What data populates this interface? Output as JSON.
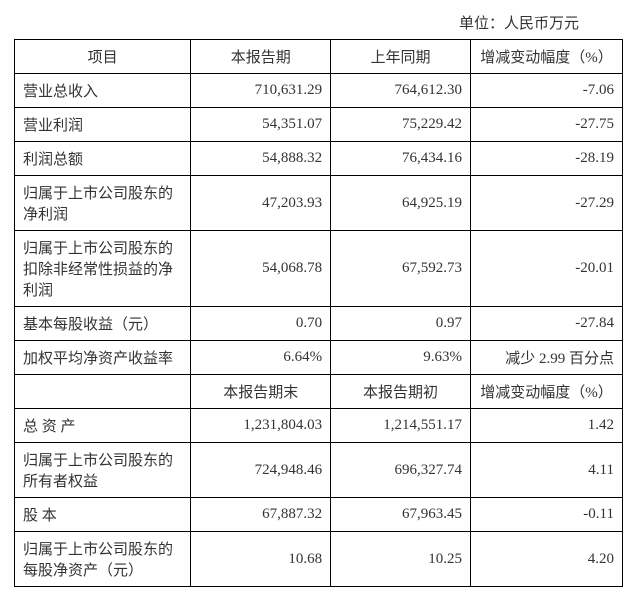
{
  "unit_label": "单位：人民币万元",
  "header1": {
    "col1": "项目",
    "col2": "本报告期",
    "col3": "上年同期",
    "col4": "增减变动幅度（%）"
  },
  "rows1": [
    {
      "label": "营业总收入",
      "v1": "710,631.29",
      "v2": "764,612.30",
      "v3": "-7.06"
    },
    {
      "label": "营业利润",
      "v1": "54,351.07",
      "v2": "75,229.42",
      "v3": "-27.75"
    },
    {
      "label": "利润总额",
      "v1": "54,888.32",
      "v2": "76,434.16",
      "v3": "-28.19"
    },
    {
      "label": "归属于上市公司股东的净利润",
      "v1": "47,203.93",
      "v2": "64,925.19",
      "v3": "-27.29"
    },
    {
      "label": "归属于上市公司股东的扣除非经常性损益的净利润",
      "v1": "54,068.78",
      "v2": "67,592.73",
      "v3": "-20.01"
    },
    {
      "label": "基本每股收益（元）",
      "v1": "0.70",
      "v2": "0.97",
      "v3": "-27.84"
    },
    {
      "label": "加权平均净资产收益率",
      "v1": "6.64%",
      "v2": "9.63%",
      "v3": "减少 2.99 百分点"
    }
  ],
  "header2": {
    "col2": "本报告期末",
    "col3": "本报告期初",
    "col4": "增减变动幅度（%）"
  },
  "rows2": [
    {
      "label": "总 资 产",
      "v1": "1,231,804.03",
      "v2": "1,214,551.17",
      "v3": "1.42"
    },
    {
      "label": "归属于上市公司股东的所有者权益",
      "v1": "724,948.46",
      "v2": "696,327.74",
      "v3": "4.11"
    },
    {
      "label": "股    本",
      "v1": "67,887.32",
      "v2": "67,963.45",
      "v3": "-0.11"
    },
    {
      "label": "归属于上市公司股东的每股净资产（元）",
      "v1": "10.68",
      "v2": "10.25",
      "v3": "4.20"
    }
  ],
  "styling": {
    "font_family": "SimSun",
    "font_size": 15,
    "border_color": "#000000",
    "text_color": "#333333",
    "background_color": "#ffffff",
    "col_widths_pct": [
      29,
      23,
      23,
      25
    ],
    "header_align": "center",
    "label_align": "left",
    "num_align": "right"
  }
}
